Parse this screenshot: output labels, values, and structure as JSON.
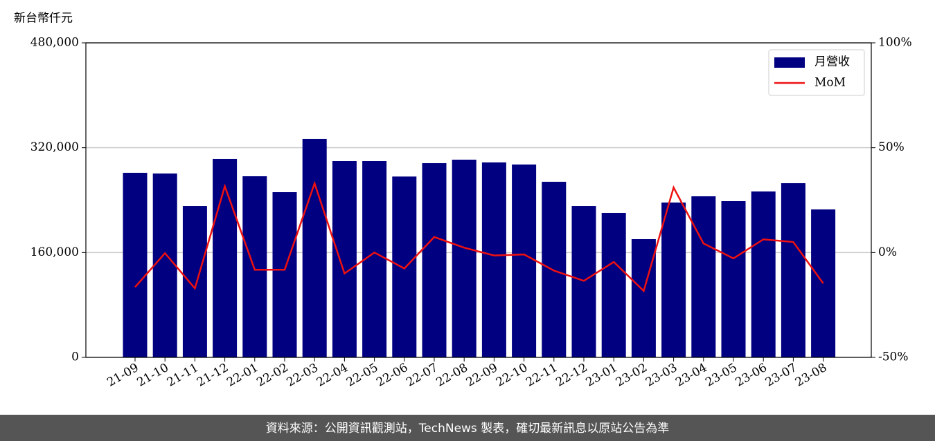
{
  "chart_data": {
    "type": "bar-line",
    "y_axis_label": "新台幣仟元",
    "categories": [
      "21-09",
      "21-10",
      "21-11",
      "21-12",
      "22-01",
      "22-02",
      "22-03",
      "22-04",
      "22-05",
      "22-06",
      "22-07",
      "22-08",
      "22-09",
      "22-10",
      "22-11",
      "22-12",
      "23-01",
      "23-02",
      "23-03",
      "23-04",
      "23-05",
      "23-06",
      "23-07",
      "23-08"
    ],
    "series": [
      {
        "name": "月營收",
        "type": "bar",
        "color": "#000080",
        "values": [
          281700,
          280600,
          231000,
          302800,
          276400,
          252100,
          333400,
          299600,
          299600,
          276000,
          296400,
          301700,
          297500,
          294300,
          268000,
          231000,
          220500,
          180400,
          236300,
          245800,
          238400,
          253200,
          265800,
          225800
        ]
      },
      {
        "name": "MoM",
        "type": "line",
        "axis": "y2",
        "color": "#ee1111",
        "values": [
          -16.5,
          -0.3,
          -17.1,
          31.6,
          -8.2,
          -8.2,
          33,
          -10,
          0,
          -7.6,
          7.4,
          2.3,
          -1.4,
          -0.9,
          -8.6,
          -13.5,
          -4.5,
          -18.3,
          31,
          4.3,
          -2.8,
          6.3,
          5,
          -14.7
        ]
      }
    ],
    "ylim": [
      0,
      480000
    ],
    "yticks": [
      0,
      {
        "value": 160000,
        "label": "160,000"
      },
      {
        "value": 320000,
        "label": "320,000"
      },
      {
        "value": 480000,
        "label": "480,000"
      }
    ],
    "y2lim": [
      -50,
      100
    ],
    "y2ticks": [
      {
        "value": -50,
        "label": "-50%"
      },
      {
        "value": 0,
        "label": "0%"
      },
      {
        "value": 50,
        "label": "50%"
      },
      {
        "value": 100,
        "label": "100%"
      }
    ],
    "grid": true,
    "legend": "upper right",
    "footer": "資料來源：公開資訊觀測站，TechNews 製表，確切最新訊息以原站公告為準"
  }
}
